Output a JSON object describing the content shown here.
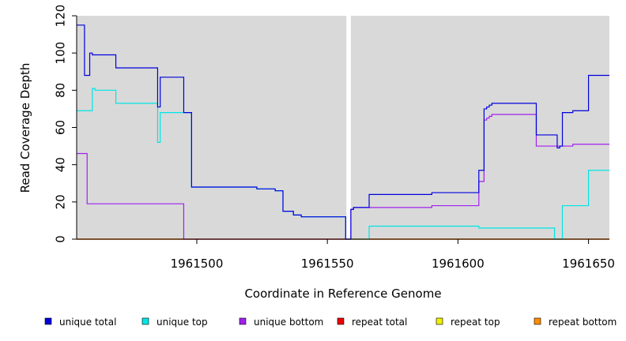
{
  "chart_data": {
    "type": "line",
    "title": "",
    "xlabel": "Coordinate in Reference Genome",
    "ylabel": "Read Coverage Depth",
    "xlim": [
      1961454,
      1961658
    ],
    "ylim": [
      0,
      120
    ],
    "yticks": [
      0,
      20,
      40,
      60,
      80,
      100,
      120
    ],
    "xticks": [
      1961500,
      1961550,
      1961600,
      1961650
    ],
    "gap": {
      "from": 1961557,
      "to": 1961559
    },
    "plot_background": "#d9d9d9",
    "series": [
      {
        "name": "unique total",
        "color": "#0000dd",
        "steps": [
          [
            1961454,
            115
          ],
          [
            1961457,
            88
          ],
          [
            1961459,
            100
          ],
          [
            1961460,
            99
          ],
          [
            1961469,
            92
          ],
          [
            1961485,
            71
          ],
          [
            1961486,
            87
          ],
          [
            1961495,
            68
          ],
          [
            1961498,
            28
          ],
          [
            1961523,
            27
          ],
          [
            1961530,
            26
          ],
          [
            1961533,
            15
          ],
          [
            1961537,
            13
          ],
          [
            1961540,
            12
          ],
          [
            1961557,
            0
          ],
          [
            1961559,
            16
          ],
          [
            1961560,
            17
          ],
          [
            1961566,
            24
          ],
          [
            1961590,
            25
          ],
          [
            1961608,
            37
          ],
          [
            1961610,
            70
          ],
          [
            1961611,
            71
          ],
          [
            1961612,
            72
          ],
          [
            1961613,
            73
          ],
          [
            1961630,
            56
          ],
          [
            1961638,
            49
          ],
          [
            1961639,
            50
          ],
          [
            1961640,
            68
          ],
          [
            1961644,
            69
          ],
          [
            1961650,
            88
          ]
        ]
      },
      {
        "name": "unique top",
        "color": "#00e5e5",
        "steps": [
          [
            1961454,
            69
          ],
          [
            1961460,
            81
          ],
          [
            1961461,
            80
          ],
          [
            1961469,
            73
          ],
          [
            1961485,
            52
          ],
          [
            1961486,
            68
          ],
          [
            1961495,
            68
          ],
          [
            1961498,
            28
          ],
          [
            1961523,
            27
          ],
          [
            1961530,
            26
          ],
          [
            1961533,
            15
          ],
          [
            1961537,
            13
          ],
          [
            1961540,
            12
          ],
          [
            1961557,
            0
          ],
          [
            1961566,
            7
          ],
          [
            1961608,
            6
          ],
          [
            1961637,
            0
          ],
          [
            1961640,
            18
          ],
          [
            1961650,
            37
          ]
        ]
      },
      {
        "name": "unique bottom",
        "color": "#a020f0",
        "steps": [
          [
            1961454,
            46
          ],
          [
            1961458,
            19
          ],
          [
            1961495,
            0
          ],
          [
            1961559,
            16
          ],
          [
            1961560,
            17
          ],
          [
            1961590,
            18
          ],
          [
            1961608,
            31
          ],
          [
            1961610,
            64
          ],
          [
            1961611,
            65
          ],
          [
            1961612,
            66
          ],
          [
            1961613,
            67
          ],
          [
            1961630,
            50
          ],
          [
            1961640,
            50
          ],
          [
            1961644,
            51
          ]
        ]
      },
      {
        "name": "repeat total",
        "color": "#ee0000",
        "steps": [
          [
            1961454,
            0
          ]
        ]
      },
      {
        "name": "repeat top",
        "color": "#eeee00",
        "steps": [
          [
            1961454,
            0
          ]
        ]
      },
      {
        "name": "repeat bottom",
        "color": "#ff8c00",
        "steps": [
          [
            1961454,
            0
          ]
        ]
      }
    ]
  }
}
